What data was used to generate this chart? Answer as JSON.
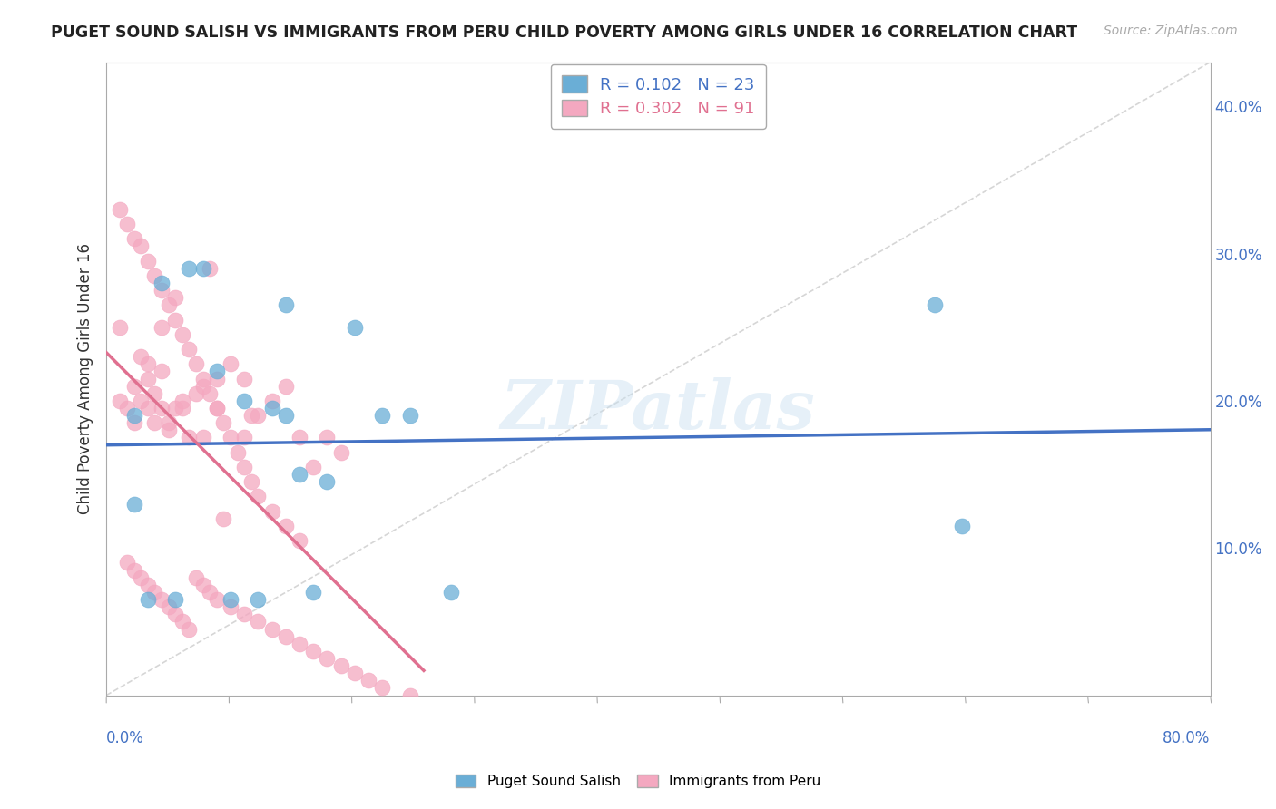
{
  "title": "PUGET SOUND SALISH VS IMMIGRANTS FROM PERU CHILD POVERTY AMONG GIRLS UNDER 16 CORRELATION CHART",
  "source": "Source: ZipAtlas.com",
  "ylabel": "Child Poverty Among Girls Under 16",
  "ylabel_right_ticks": [
    "10.0%",
    "20.0%",
    "30.0%",
    "40.0%"
  ],
  "ylabel_right_vals": [
    0.1,
    0.2,
    0.3,
    0.4
  ],
  "xmin": 0.0,
  "xmax": 0.8,
  "ymin": 0.0,
  "ymax": 0.43,
  "legend_r1": "R = 0.102   N = 23",
  "legend_r2": "R = 0.302   N = 91",
  "color_blue": "#6aaed6",
  "color_pink": "#f4a8c0",
  "color_blue_line": "#4472c4",
  "color_pink_line": "#e07090",
  "watermark": "ZIPatlas",
  "blue_x": [
    0.02,
    0.04,
    0.06,
    0.07,
    0.08,
    0.1,
    0.12,
    0.13,
    0.14,
    0.16,
    0.18,
    0.2,
    0.22,
    0.6,
    0.62,
    0.03,
    0.05,
    0.09,
    0.11,
    0.15,
    0.25,
    0.02,
    0.13
  ],
  "blue_y": [
    0.19,
    0.28,
    0.29,
    0.29,
    0.22,
    0.2,
    0.195,
    0.265,
    0.15,
    0.145,
    0.25,
    0.19,
    0.19,
    0.265,
    0.115,
    0.065,
    0.065,
    0.065,
    0.065,
    0.07,
    0.07,
    0.13,
    0.19
  ],
  "pink_x": [
    0.01,
    0.01,
    0.015,
    0.02,
    0.02,
    0.025,
    0.025,
    0.03,
    0.03,
    0.03,
    0.035,
    0.035,
    0.04,
    0.04,
    0.04,
    0.045,
    0.045,
    0.05,
    0.05,
    0.055,
    0.055,
    0.06,
    0.065,
    0.07,
    0.07,
    0.075,
    0.08,
    0.08,
    0.085,
    0.09,
    0.1,
    0.1,
    0.105,
    0.11,
    0.12,
    0.13,
    0.14,
    0.15,
    0.16,
    0.17,
    0.01,
    0.015,
    0.02,
    0.025,
    0.03,
    0.035,
    0.04,
    0.045,
    0.05,
    0.055,
    0.06,
    0.065,
    0.07,
    0.075,
    0.08,
    0.085,
    0.09,
    0.095,
    0.1,
    0.105,
    0.11,
    0.12,
    0.13,
    0.14,
    0.015,
    0.02,
    0.025,
    0.03,
    0.035,
    0.04,
    0.045,
    0.05,
    0.055,
    0.06,
    0.065,
    0.07,
    0.075,
    0.08,
    0.09,
    0.1,
    0.11,
    0.12,
    0.13,
    0.14,
    0.15,
    0.16,
    0.17,
    0.18,
    0.19,
    0.2,
    0.22
  ],
  "pink_y": [
    0.2,
    0.25,
    0.195,
    0.185,
    0.21,
    0.23,
    0.2,
    0.195,
    0.215,
    0.225,
    0.205,
    0.185,
    0.195,
    0.22,
    0.25,
    0.185,
    0.18,
    0.195,
    0.27,
    0.195,
    0.2,
    0.175,
    0.205,
    0.21,
    0.175,
    0.29,
    0.215,
    0.195,
    0.12,
    0.225,
    0.215,
    0.175,
    0.19,
    0.19,
    0.2,
    0.21,
    0.175,
    0.155,
    0.175,
    0.165,
    0.33,
    0.32,
    0.31,
    0.305,
    0.295,
    0.285,
    0.275,
    0.265,
    0.255,
    0.245,
    0.235,
    0.225,
    0.215,
    0.205,
    0.195,
    0.185,
    0.175,
    0.165,
    0.155,
    0.145,
    0.135,
    0.125,
    0.115,
    0.105,
    0.09,
    0.085,
    0.08,
    0.075,
    0.07,
    0.065,
    0.06,
    0.055,
    0.05,
    0.045,
    0.08,
    0.075,
    0.07,
    0.065,
    0.06,
    0.055,
    0.05,
    0.045,
    0.04,
    0.035,
    0.03,
    0.025,
    0.02,
    0.015,
    0.01,
    0.005,
    0.0
  ]
}
